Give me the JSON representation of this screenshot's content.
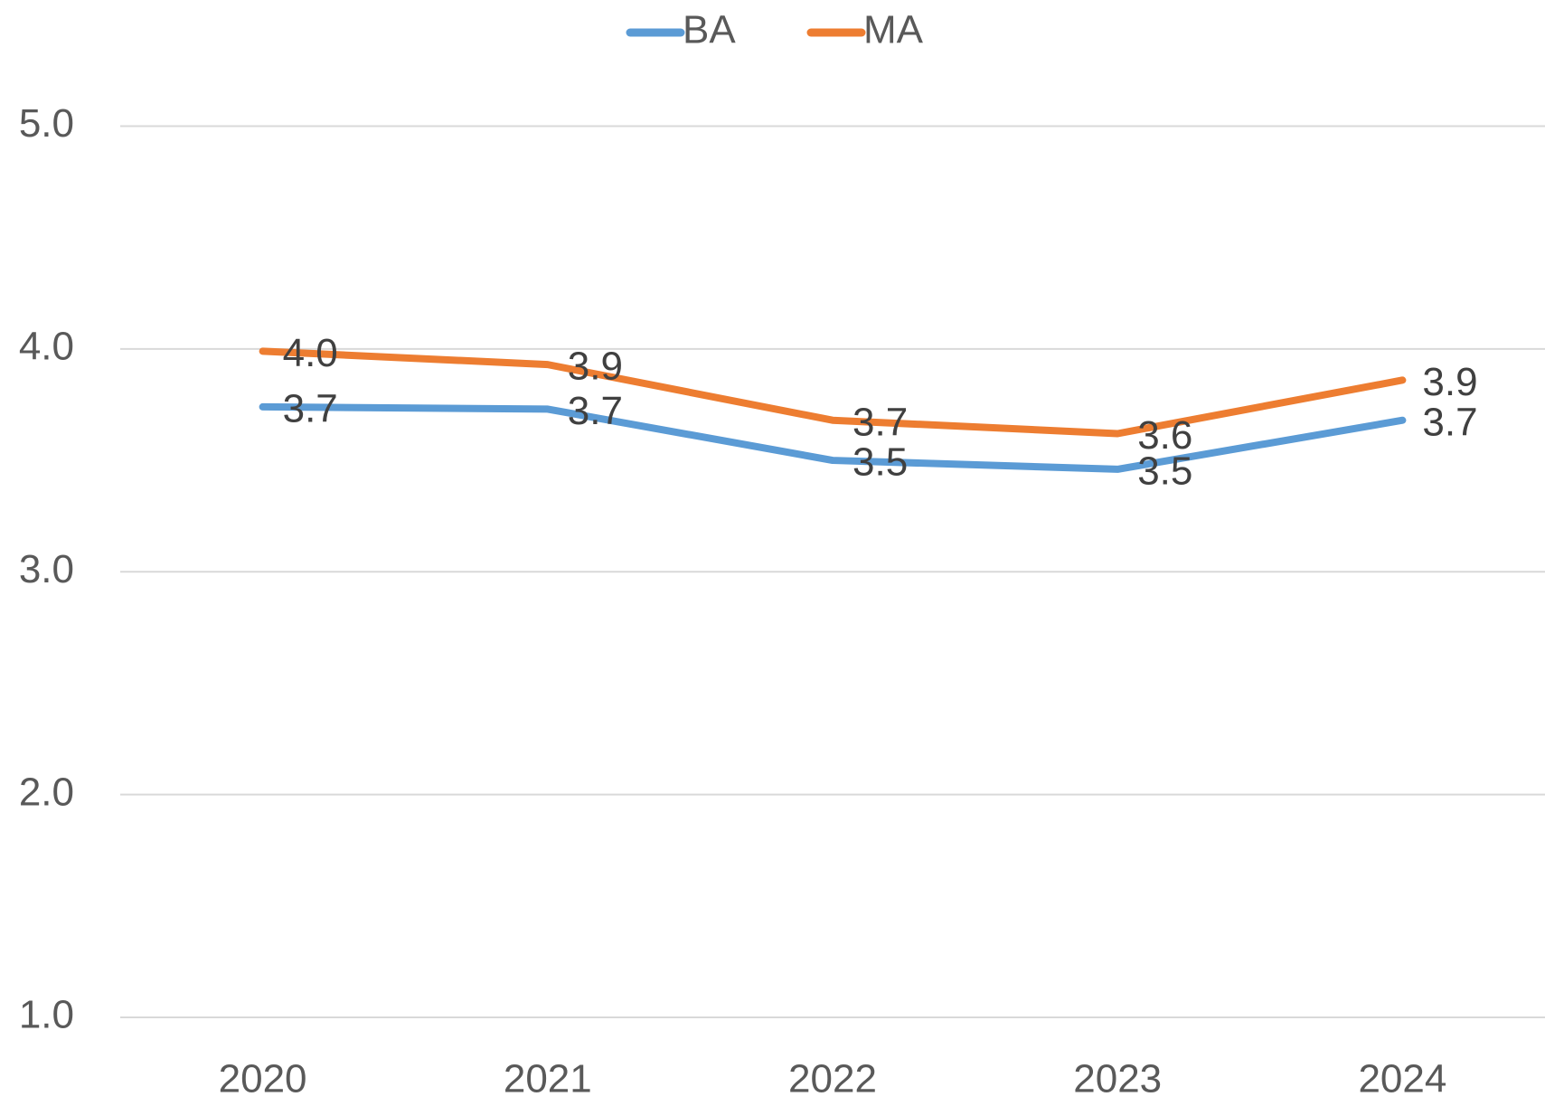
{
  "chart_data": {
    "type": "line",
    "categories": [
      "2020",
      "2021",
      "2022",
      "2023",
      "2024"
    ],
    "series": [
      {
        "name": "BA",
        "color": "#5b9bd5",
        "values": [
          3.74,
          3.73,
          3.5,
          3.46,
          3.68
        ],
        "value_labels": [
          "3.7",
          "3.7",
          "3.5",
          "3.5",
          "3.7"
        ]
      },
      {
        "name": "MA",
        "color": "#ed7d31",
        "values": [
          3.99,
          3.93,
          3.68,
          3.62,
          3.86
        ],
        "value_labels": [
          "4.0",
          "3.9",
          "3.7",
          "3.6",
          "3.9"
        ]
      }
    ],
    "ylim": [
      1,
      5
    ],
    "yticks": [
      {
        "value": 1,
        "label": "1.0"
      },
      {
        "value": 2,
        "label": "2.0"
      },
      {
        "value": 3,
        "label": "3.0"
      },
      {
        "value": 4,
        "label": "4.0"
      },
      {
        "value": 5,
        "label": "5.0"
      }
    ],
    "grid": true,
    "legend": "top"
  }
}
